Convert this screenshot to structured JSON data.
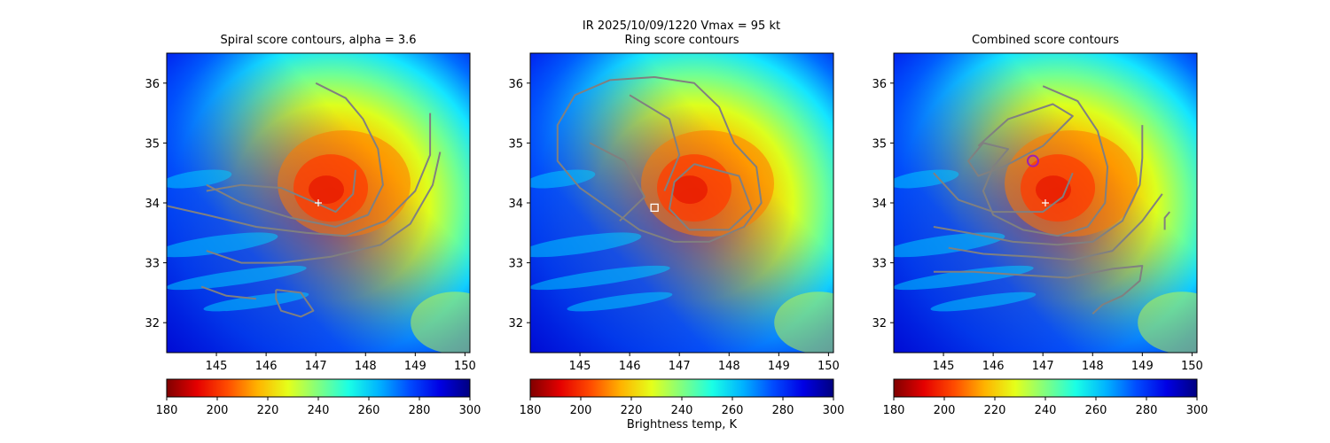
{
  "figure": {
    "suptitle_line1": "IR  2025/10/09/1220    Vmax = 95 kt",
    "suptitle_line2": "",
    "colorbar_label": "Brightness temp, K"
  },
  "chart_data": [
    {
      "type": "heatmap",
      "title": "Spiral score contours, alpha =  3.6",
      "xlim": [
        144.0,
        150.1
      ],
      "ylim": [
        31.5,
        36.5
      ],
      "xticks": [
        "145",
        "146",
        "147",
        "148",
        "149",
        "150"
      ],
      "yticks": [
        "32",
        "33",
        "34",
        "35",
        "36"
      ],
      "colorbar": {
        "cmap": "jet_r",
        "range": [
          180,
          300
        ],
        "ticks": [
          "180",
          "200",
          "220",
          "240",
          "260",
          "280",
          "300"
        ]
      },
      "markers": [
        {
          "type": "cross",
          "color": "#ffffff",
          "x": 147.05,
          "y": 34.0
        }
      ],
      "contours": [
        [
          [
            147.0,
            36.0
          ],
          [
            147.6,
            35.75
          ],
          [
            147.95,
            35.4
          ],
          [
            148.25,
            34.9
          ],
          [
            148.35,
            34.3
          ],
          [
            148.05,
            33.8
          ],
          [
            147.4,
            33.6
          ],
          [
            146.5,
            33.75
          ],
          [
            145.5,
            34.0
          ],
          [
            144.8,
            34.3
          ]
        ],
        [
          [
            144.8,
            34.2
          ],
          [
            145.5,
            34.3
          ],
          [
            146.3,
            34.25
          ],
          [
            147.0,
            34.0
          ],
          [
            147.4,
            33.85
          ],
          [
            147.75,
            34.15
          ],
          [
            147.8,
            34.55
          ]
        ],
        [
          [
            144.0,
            33.95
          ],
          [
            144.8,
            33.8
          ],
          [
            145.8,
            33.6
          ],
          [
            146.8,
            33.5
          ],
          [
            147.6,
            33.45
          ],
          [
            148.4,
            33.7
          ],
          [
            149.0,
            34.2
          ],
          [
            149.3,
            34.8
          ],
          [
            149.3,
            35.5
          ]
        ],
        [
          [
            144.8,
            33.2
          ],
          [
            145.5,
            33.0
          ],
          [
            146.3,
            33.0
          ],
          [
            147.3,
            33.1
          ],
          [
            148.3,
            33.3
          ],
          [
            148.9,
            33.65
          ],
          [
            149.35,
            34.3
          ],
          [
            149.5,
            34.85
          ]
        ],
        [
          [
            144.7,
            32.6
          ],
          [
            145.2,
            32.45
          ],
          [
            145.8,
            32.4
          ]
        ],
        [
          [
            146.2,
            32.55
          ],
          [
            146.7,
            32.5
          ],
          [
            146.95,
            32.2
          ],
          [
            146.7,
            32.1
          ],
          [
            146.3,
            32.2
          ],
          [
            146.2,
            32.4
          ],
          [
            146.2,
            32.55
          ]
        ]
      ]
    },
    {
      "type": "heatmap",
      "title": "Ring score contours",
      "xlim": [
        144.0,
        150.1
      ],
      "ylim": [
        31.5,
        36.5
      ],
      "xticks": [
        "145",
        "146",
        "147",
        "148",
        "149",
        "150"
      ],
      "yticks": [
        "32",
        "33",
        "34",
        "35",
        "36"
      ],
      "colorbar": {
        "cmap": "jet_r",
        "range": [
          180,
          300
        ],
        "ticks": [
          "180",
          "200",
          "220",
          "240",
          "260",
          "280",
          "300"
        ]
      },
      "markers": [
        {
          "type": "square",
          "color": "#ffffff",
          "x": 146.5,
          "y": 33.92
        }
      ],
      "contours": [
        [
          [
            146.5,
            36.1
          ],
          [
            147.3,
            36.0
          ],
          [
            147.8,
            35.6
          ],
          [
            148.1,
            35.0
          ],
          [
            148.55,
            34.6
          ],
          [
            148.65,
            34.0
          ],
          [
            148.3,
            33.6
          ],
          [
            147.6,
            33.35
          ],
          [
            146.9,
            33.35
          ],
          [
            146.2,
            33.55
          ],
          [
            145.6,
            33.9
          ],
          [
            145.0,
            34.25
          ],
          [
            144.55,
            34.7
          ],
          [
            144.55,
            35.3
          ],
          [
            144.9,
            35.8
          ],
          [
            145.6,
            36.05
          ],
          [
            146.5,
            36.1
          ]
        ],
        [
          [
            147.3,
            34.65
          ],
          [
            148.2,
            34.45
          ],
          [
            148.45,
            33.9
          ],
          [
            148.0,
            33.55
          ],
          [
            147.2,
            33.55
          ],
          [
            146.8,
            33.9
          ],
          [
            146.9,
            34.35
          ],
          [
            147.3,
            34.65
          ]
        ],
        [
          [
            146.0,
            35.8
          ],
          [
            146.8,
            35.4
          ],
          [
            147.0,
            34.8
          ],
          [
            146.7,
            34.2
          ]
        ],
        [
          [
            145.2,
            35.0
          ],
          [
            145.9,
            34.7
          ],
          [
            146.3,
            34.1
          ],
          [
            145.8,
            33.7
          ]
        ]
      ]
    },
    {
      "type": "heatmap",
      "title": "Combined score contours",
      "xlim": [
        144.0,
        150.1
      ],
      "ylim": [
        31.5,
        36.5
      ],
      "xticks": [
        "145",
        "146",
        "147",
        "148",
        "149",
        "150"
      ],
      "yticks": [
        "32",
        "33",
        "34",
        "35",
        "36"
      ],
      "colorbar": {
        "cmap": "jet_r",
        "range": [
          180,
          300
        ],
        "ticks": [
          "180",
          "200",
          "220",
          "240",
          "260",
          "280",
          "300"
        ]
      },
      "markers": [
        {
          "type": "cross",
          "color": "#ffffff",
          "x": 147.05,
          "y": 34.0
        },
        {
          "type": "circle",
          "color": "#a020b0",
          "x": 146.8,
          "y": 34.7
        }
      ],
      "contours": [
        [
          [
            147.0,
            35.95
          ],
          [
            147.7,
            35.7
          ],
          [
            148.1,
            35.2
          ],
          [
            148.3,
            34.6
          ],
          [
            148.25,
            34.0
          ],
          [
            147.9,
            33.6
          ],
          [
            147.3,
            33.45
          ],
          [
            146.6,
            33.55
          ],
          [
            146.0,
            33.8
          ],
          [
            145.8,
            34.2
          ],
          [
            146.0,
            34.6
          ],
          [
            146.3,
            34.9
          ],
          [
            145.8,
            35.0
          ],
          [
            145.5,
            34.7
          ],
          [
            145.7,
            34.45
          ],
          [
            146.2,
            34.6
          ],
          [
            147.0,
            34.95
          ],
          [
            147.6,
            35.45
          ],
          [
            147.2,
            35.65
          ],
          [
            146.3,
            35.4
          ],
          [
            145.7,
            34.95
          ]
        ],
        [
          [
            144.8,
            34.5
          ],
          [
            145.3,
            34.05
          ],
          [
            146.0,
            33.85
          ],
          [
            147.0,
            33.85
          ],
          [
            147.4,
            34.1
          ],
          [
            147.6,
            34.5
          ]
        ],
        [
          [
            144.8,
            33.6
          ],
          [
            145.5,
            33.5
          ],
          [
            146.4,
            33.35
          ],
          [
            147.3,
            33.3
          ],
          [
            148.0,
            33.35
          ],
          [
            148.6,
            33.7
          ],
          [
            148.95,
            34.3
          ],
          [
            149.0,
            34.75
          ],
          [
            149.0,
            35.3
          ]
        ],
        [
          [
            145.1,
            33.25
          ],
          [
            145.8,
            33.15
          ],
          [
            146.8,
            33.1
          ],
          [
            147.6,
            33.05
          ],
          [
            148.4,
            33.2
          ],
          [
            149.0,
            33.7
          ],
          [
            149.4,
            34.15
          ]
        ],
        [
          [
            144.8,
            32.85
          ],
          [
            145.6,
            32.85
          ],
          [
            146.5,
            32.8
          ],
          [
            147.5,
            32.75
          ],
          [
            148.4,
            32.9
          ],
          [
            149.0,
            32.95
          ],
          [
            148.95,
            32.7
          ],
          [
            148.6,
            32.45
          ],
          [
            148.2,
            32.3
          ],
          [
            148.0,
            32.15
          ]
        ],
        [
          [
            149.45,
            33.55
          ],
          [
            149.45,
            33.75
          ],
          [
            149.55,
            33.85
          ]
        ]
      ]
    }
  ]
}
